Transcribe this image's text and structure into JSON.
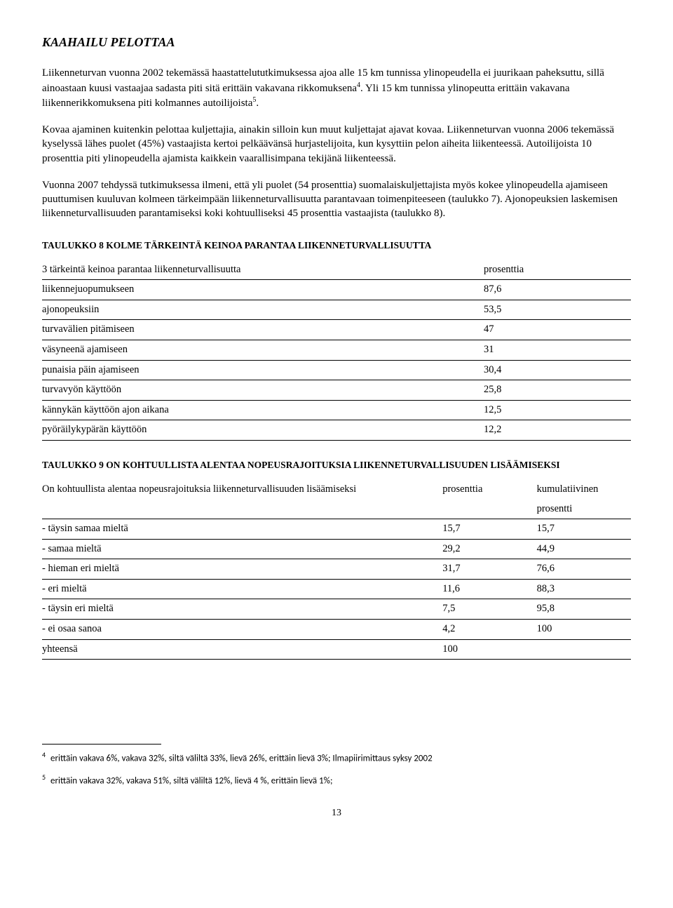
{
  "title": "KAAHAILU PELOTTAA",
  "para1_a": "Liikenneturvan vuonna 2002 tekemässä haastattelututkimuksessa ajoa alle 15 km tunnissa ylinopeudella ei juurikaan paheksuttu, sillä ainoastaan kuusi vastaajaa sadasta piti sitä erittäin vakavana rikkomuksena",
  "para1_b": ". Yli 15 km tunnissa ylinopeutta erittäin vakavana liikennerikkomuksena piti kolmannes autoilijoista",
  "para1_c": ".",
  "para2": "Kovaa ajaminen kuitenkin pelottaa kuljettajia, ainakin silloin kun muut kuljettajat ajavat kovaa. Liikenneturvan vuonna 2006 tekemässä kyselyssä lähes puolet (45%) vastaajista kertoi pelkäävänsä hurjastelijoita, kun kysyttiin pelon aiheita liikenteessä. Autoilijoista 10 prosenttia piti ylinopeudella ajamista kaikkein vaarallisimpana tekijänä liikenteessä.",
  "para3": "Vuonna 2007 tehdyssä tutkimuksessa ilmeni, että yli puolet (54 prosenttia) suomalaiskuljettajista myös kokee ylinopeudella ajamiseen puuttumisen kuuluvan kolmeen tärkeimpään liikenneturvallisuutta parantavaan toimenpiteeseen (taulukko 7). Ajonopeuksien laskemisen liikenneturvallisuuden parantamiseksi koki kohtuulliseksi 45 prosenttia vastaajista (taulukko 8).",
  "table8": {
    "heading": "TAULUKKO 8 KOLME TÄRKEINTÄ KEINOA PARANTAA LIIKENNETURVALLISUUTTA",
    "header_label": "3 tärkeintä keinoa parantaa liikenneturvallisuutta",
    "header_value": "prosenttia",
    "rows": [
      {
        "label": "liikennejuopumukseen",
        "value": "87,6"
      },
      {
        "label": "ajonopeuksiin",
        "value": "53,5"
      },
      {
        "label": "turvavälien pitämiseen",
        "value": "47"
      },
      {
        "label": "väsyneenä ajamiseen",
        "value": "31"
      },
      {
        "label": "punaisia päin ajamiseen",
        "value": "30,4"
      },
      {
        "label": "turvavyön käyttöön",
        "value": "25,8"
      },
      {
        "label": "kännykän käyttöön ajon aikana",
        "value": "12,5"
      },
      {
        "label": "pyöräilykypärän käyttöön",
        "value": "12,2"
      }
    ]
  },
  "table9": {
    "heading": "TAULUKKO 9 ON KOHTUULLISTA ALENTAA NOPEUSRAJOITUKSIA LIIKENNETURVALLISUUDEN LISÄÄMISEKSI",
    "header_label": "On kohtuullista alentaa nopeusrajoituksia liikenneturvallisuuden lisäämiseksi",
    "header_value": "prosenttia",
    "header_value2a": "kumulatiivinen",
    "header_value2b": "prosentti",
    "rows": [
      {
        "label": "- täysin samaa mieltä",
        "v1": "15,7",
        "v2": "15,7"
      },
      {
        "label": "- samaa mieltä",
        "v1": "29,2",
        "v2": "44,9"
      },
      {
        "label": "- hieman eri mieltä",
        "v1": "31,7",
        "v2": "76,6"
      },
      {
        "label": "- eri mieltä",
        "v1": "11,6",
        "v2": "88,3"
      },
      {
        "label": "- täysin eri mieltä",
        "v1": "7,5",
        "v2": "95,8"
      },
      {
        "label": "- ei osaa sanoa",
        "v1": "4,2",
        "v2": "100"
      },
      {
        "label": "yhteensä",
        "v1": "100",
        "v2": ""
      }
    ]
  },
  "footnote4": " erittäin vakava 6%, vakava 32%, siltä väliltä 33%, lievä 26%, erittäin lievä 3%; Ilmapiirimittaus syksy 2002",
  "footnote5": " erittäin vakava 32%, vakava 51%, siltä väliltä 12%, lievä 4 %, erittäin lievä 1%;",
  "pagenum": "13"
}
